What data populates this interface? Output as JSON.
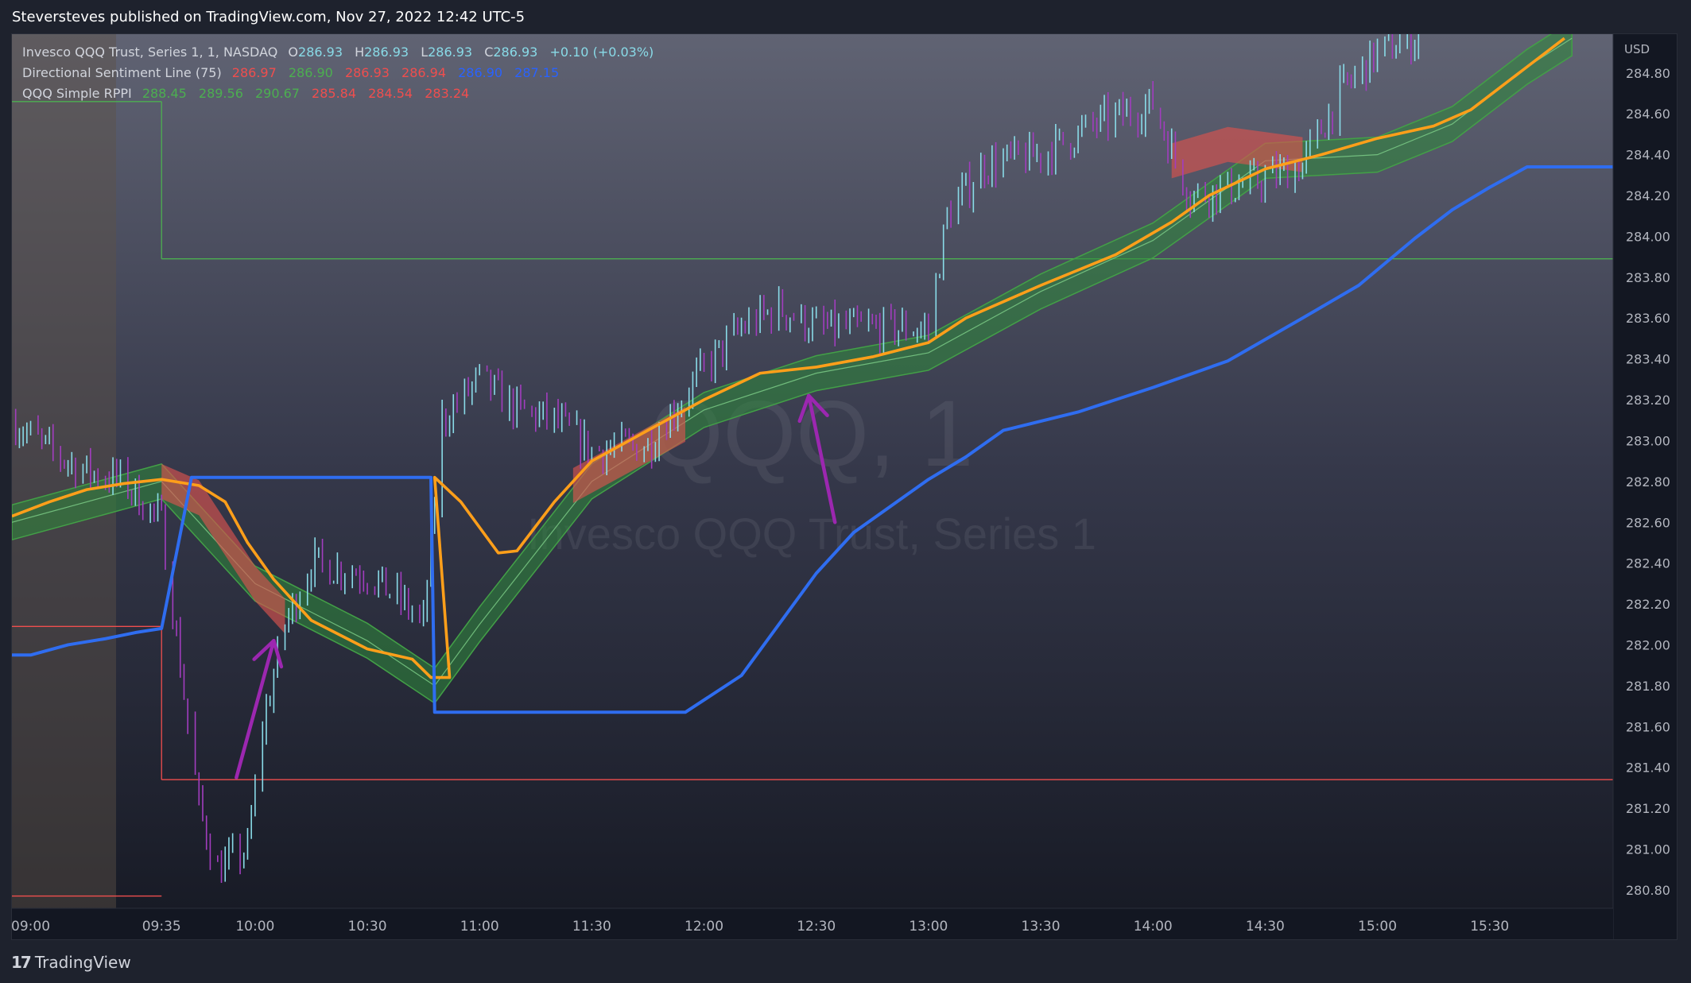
{
  "header": {
    "published_text": "Steversteves published on TradingView.com, Nov 27, 2022 12:42 UTC-5"
  },
  "footer": {
    "brand": "TradingView",
    "logo_glyph": "17"
  },
  "legend": {
    "symbol": {
      "name": "Invesco QQQ Trust, Series 1, 1, NASDAQ",
      "o_label": "O",
      "o": "286.93",
      "h_label": "H",
      "h": "286.93",
      "l_label": "L",
      "l": "286.93",
      "c_label": "C",
      "c": "286.93",
      "change": "+0.10 (+0.03%)"
    },
    "dsl": {
      "name": "Directional Sentiment Line (75)",
      "values": [
        "286.97",
        "286.90",
        "286.93",
        "286.94",
        "286.90",
        "287.15"
      ]
    },
    "rppi": {
      "name": "QQQ Simple RPPI",
      "values": [
        "288.45",
        "289.56",
        "290.67",
        "285.84",
        "284.54",
        "283.24"
      ]
    }
  },
  "watermark": {
    "line1": "QQQ, 1",
    "line2": "Invesco QQQ Trust, Series 1"
  },
  "colors": {
    "background": "#131722",
    "up": "#89dbe8",
    "down": "#a23dbf",
    "orange": "#ff9f1a",
    "blue": "#2f6df0",
    "green_band": "#2e8b3a",
    "red_band": "#d9534f",
    "legend_green": "#4caf50",
    "legend_red": "#f04e4e",
    "legend_blue": "#2962ff",
    "legend_text": "#d1d4dc",
    "annotation_arrow": "#9c27b0"
  },
  "chart_data": {
    "type": "line",
    "title": "Invesco QQQ Trust, Series 1, 1, NASDAQ",
    "currency": "USD",
    "x_ticks": [
      "09:00",
      "09:35",
      "10:00",
      "10:30",
      "11:00",
      "11:30",
      "12:00",
      "12:30",
      "13:00",
      "13:30",
      "14:00",
      "14:30",
      "15:00",
      "15:30"
    ],
    "y_ticks": [
      "284.80",
      "284.60",
      "284.40",
      "284.20",
      "284.00",
      "283.80",
      "283.60",
      "283.40",
      "283.20",
      "283.00",
      "282.80",
      "282.60",
      "282.40",
      "282.20",
      "282.00",
      "281.80",
      "281.60",
      "281.40",
      "281.20",
      "281.00",
      "280.80"
    ],
    "ylim": [
      280.71,
      284.99
    ],
    "xlim": [
      "08:55",
      "16:03"
    ],
    "premarket_shaded_until": "09:35",
    "horizontal_levels": [
      {
        "name": "upper",
        "value": 283.89,
        "from": "09:35",
        "color": "#4caf50"
      },
      {
        "name": "upper-pre",
        "value": 284.66,
        "until": "09:35",
        "color": "#4caf50"
      },
      {
        "name": "lower",
        "value": 281.34,
        "from": "09:35",
        "color": "#f04e4e"
      },
      {
        "name": "lower-pre",
        "value": 282.09,
        "until": "09:35",
        "color": "#f04e4e"
      },
      {
        "name": "lower-pre-2",
        "value": 280.77,
        "until": "09:35",
        "color": "#f04e4e"
      }
    ],
    "series": [
      {
        "name": "blue",
        "color": "#2f6df0",
        "points": [
          [
            "08:55",
            281.95
          ],
          [
            "09:00",
            281.95
          ],
          [
            "09:10",
            282.0
          ],
          [
            "09:20",
            282.03
          ],
          [
            "09:28",
            282.06
          ],
          [
            "09:35",
            282.08
          ],
          [
            "09:43",
            282.82
          ],
          [
            "10:42",
            282.82
          ],
          [
            "10:47",
            282.82
          ],
          [
            "10:48",
            281.67
          ],
          [
            "11:55",
            281.67
          ],
          [
            "12:10",
            281.85
          ],
          [
            "12:30",
            282.35
          ],
          [
            "12:40",
            282.55
          ],
          [
            "13:00",
            282.81
          ],
          [
            "13:10",
            282.92
          ],
          [
            "13:20",
            283.05
          ],
          [
            "13:40",
            283.14
          ],
          [
            "14:00",
            283.26
          ],
          [
            "14:20",
            283.39
          ],
          [
            "14:40",
            283.6
          ],
          [
            "14:55",
            283.76
          ],
          [
            "15:10",
            283.99
          ],
          [
            "15:20",
            284.13
          ],
          [
            "15:30",
            284.24
          ],
          [
            "15:40",
            284.34
          ],
          [
            "16:03",
            284.34
          ]
        ]
      },
      {
        "name": "orange",
        "color": "#ff9f1a",
        "points": [
          [
            "08:55",
            282.63
          ],
          [
            "09:05",
            282.7
          ],
          [
            "09:15",
            282.76
          ],
          [
            "09:25",
            282.79
          ],
          [
            "09:35",
            282.81
          ],
          [
            "09:45",
            282.78
          ],
          [
            "09:52",
            282.7
          ],
          [
            "09:58",
            282.5
          ],
          [
            "10:05",
            282.32
          ],
          [
            "10:15",
            282.12
          ],
          [
            "10:30",
            281.98
          ],
          [
            "10:42",
            281.93
          ],
          [
            "10:47",
            281.84
          ],
          [
            "10:52",
            281.84
          ],
          [
            "10:48",
            282.82
          ],
          [
            "10:55",
            282.7
          ],
          [
            "11:05",
            282.45
          ],
          [
            "11:10",
            282.46
          ],
          [
            "11:20",
            282.7
          ],
          [
            "11:30",
            282.9
          ],
          [
            "11:45",
            283.05
          ],
          [
            "12:00",
            283.2
          ],
          [
            "12:15",
            283.33
          ],
          [
            "12:30",
            283.36
          ],
          [
            "12:45",
            283.41
          ],
          [
            "13:00",
            283.48
          ],
          [
            "13:10",
            283.6
          ],
          [
            "13:30",
            283.76
          ],
          [
            "13:50",
            283.91
          ],
          [
            "14:05",
            284.07
          ],
          [
            "14:15",
            284.2
          ],
          [
            "14:30",
            284.33
          ],
          [
            "14:45",
            284.4
          ],
          [
            "15:00",
            284.48
          ],
          [
            "15:15",
            284.54
          ],
          [
            "15:25",
            284.62
          ],
          [
            "15:40",
            284.83
          ],
          [
            "15:50",
            284.97
          ]
        ]
      },
      {
        "name": "band",
        "color": "#2e8b3a",
        "points": [
          [
            "08:55",
            282.6
          ],
          [
            "09:35",
            282.8
          ],
          [
            "10:00",
            282.3
          ],
          [
            "10:30",
            282.02
          ],
          [
            "10:48",
            281.8
          ],
          [
            "11:00",
            282.1
          ],
          [
            "11:30",
            282.8
          ],
          [
            "12:00",
            283.15
          ],
          [
            "12:30",
            283.33
          ],
          [
            "13:00",
            283.43
          ],
          [
            "13:30",
            283.73
          ],
          [
            "14:00",
            283.98
          ],
          [
            "14:30",
            284.37
          ],
          [
            "15:00",
            284.4
          ],
          [
            "15:20",
            284.55
          ],
          [
            "15:40",
            284.83
          ],
          [
            "15:52",
            284.97
          ]
        ]
      }
    ],
    "annotations": [
      {
        "type": "arrow",
        "color": "#9c27b0",
        "from": [
          "09:55",
          281.35
        ],
        "to": [
          "10:05",
          282.02
        ]
      },
      {
        "type": "arrow",
        "color": "#9c27b0",
        "from": [
          "12:35",
          282.6
        ],
        "to": [
          "12:28",
          283.22
        ]
      }
    ]
  }
}
